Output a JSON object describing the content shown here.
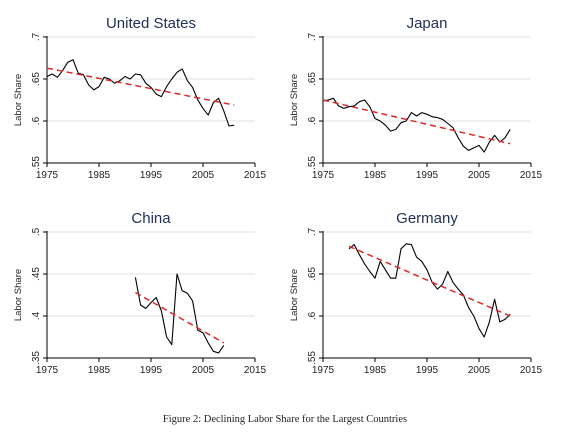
{
  "caption": "Figure 2: Declining Labor Share for the Largest Countries",
  "colors": {
    "series": "#000000",
    "trend": "#d92b2b",
    "grid": "#e2e2e2",
    "title": "#1f2f55"
  },
  "chart_data": [
    {
      "type": "line",
      "title": "United States",
      "ylabel": "Labor Share",
      "xlim": [
        1975,
        2015
      ],
      "ylim": [
        0.55,
        0.7
      ],
      "xticks": [
        "1975",
        "1985",
        "1995",
        "2005",
        "2015"
      ],
      "yticks": [
        ".55",
        ".6",
        ".65",
        ".7"
      ],
      "ytick_values": [
        0.55,
        0.6,
        0.65,
        0.7
      ],
      "grid": true,
      "series": [
        {
          "x": [
            1975,
            1976,
            1977,
            1978,
            1979,
            1980,
            1981,
            1982,
            1983,
            1984,
            1985,
            1986,
            1987,
            1988,
            1989,
            1990,
            1991,
            1992,
            1993,
            1994,
            1995,
            1996,
            1997,
            1998,
            1999,
            2000,
            2001,
            2002,
            2003,
            2004,
            2005,
            2006,
            2007,
            2008,
            2009,
            2010,
            2011
          ],
          "y": [
            0.653,
            0.656,
            0.652,
            0.66,
            0.67,
            0.673,
            0.657,
            0.655,
            0.643,
            0.637,
            0.641,
            0.652,
            0.65,
            0.645,
            0.648,
            0.653,
            0.65,
            0.656,
            0.655,
            0.645,
            0.64,
            0.632,
            0.629,
            0.641,
            0.65,
            0.658,
            0.662,
            0.648,
            0.64,
            0.625,
            0.615,
            0.607,
            0.622,
            0.627,
            0.612,
            0.594,
            0.595
          ]
        },
        {
          "x": [
            1975,
            2011
          ],
          "y": [
            0.663,
            0.619
          ]
        }
      ]
    },
    {
      "type": "line",
      "title": "Japan",
      "ylabel": "Labor Share",
      "xlim": [
        1975,
        2015
      ],
      "ylim": [
        0.55,
        0.7
      ],
      "xticks": [
        "1975",
        "1985",
        "1995",
        "2005",
        "2015"
      ],
      "yticks": [
        ".55",
        ".6",
        ".65",
        ".7"
      ],
      "ytick_values": [
        0.55,
        0.6,
        0.65,
        0.7
      ],
      "grid": true,
      "series": [
        {
          "x": [
            1975,
            1976,
            1977,
            1978,
            1979,
            1980,
            1981,
            1982,
            1983,
            1984,
            1985,
            1986,
            1987,
            1988,
            1989,
            1990,
            1991,
            1992,
            1993,
            1994,
            1995,
            1996,
            1997,
            1998,
            1999,
            2000,
            2001,
            2002,
            2003,
            2004,
            2005,
            2006,
            2007,
            2008,
            2009,
            2010,
            2011
          ],
          "y": [
            0.624,
            0.625,
            0.627,
            0.618,
            0.615,
            0.617,
            0.618,
            0.623,
            0.625,
            0.617,
            0.603,
            0.6,
            0.595,
            0.588,
            0.59,
            0.598,
            0.6,
            0.61,
            0.606,
            0.61,
            0.608,
            0.605,
            0.604,
            0.602,
            0.597,
            0.592,
            0.58,
            0.57,
            0.565,
            0.568,
            0.571,
            0.563,
            0.575,
            0.583,
            0.575,
            0.58,
            0.59
          ]
        },
        {
          "x": [
            1975,
            2011
          ],
          "y": [
            0.625,
            0.573
          ]
        }
      ]
    },
    {
      "type": "line",
      "title": "China",
      "ylabel": "Labor Share",
      "xlim": [
        1975,
        2015
      ],
      "ylim": [
        0.35,
        0.5
      ],
      "xticks": [
        "1975",
        "1985",
        "1995",
        "2005",
        "2015"
      ],
      "yticks": [
        ".35",
        ".4",
        ".45",
        ".5"
      ],
      "ytick_values": [
        0.35,
        0.4,
        0.45,
        0.5
      ],
      "grid": true,
      "series": [
        {
          "x": [
            1992,
            1993,
            1994,
            1995,
            1996,
            1997,
            1998,
            1999,
            2000,
            2001,
            2002,
            2003,
            2004,
            2005,
            2006,
            2007,
            2008,
            2009
          ],
          "y": [
            0.446,
            0.413,
            0.409,
            0.416,
            0.422,
            0.406,
            0.375,
            0.366,
            0.45,
            0.43,
            0.427,
            0.418,
            0.383,
            0.38,
            0.368,
            0.358,
            0.356,
            0.365
          ]
        },
        {
          "x": [
            1992,
            2009
          ],
          "y": [
            0.428,
            0.368
          ]
        }
      ]
    },
    {
      "type": "line",
      "title": "Germany",
      "ylabel": "Labor Share",
      "xlim": [
        1975,
        2015
      ],
      "ylim": [
        0.55,
        0.7
      ],
      "xticks": [
        "1975",
        "1985",
        "1995",
        "2005",
        "2015"
      ],
      "yticks": [
        ".55",
        ".6",
        ".65",
        ".7"
      ],
      "ytick_values": [
        0.55,
        0.6,
        0.65,
        0.7
      ],
      "grid": true,
      "series": [
        {
          "x": [
            1980,
            1981,
            1982,
            1983,
            1984,
            1985,
            1986,
            1987,
            1988,
            1989,
            1990,
            1991,
            1992,
            1993,
            1994,
            1995,
            1996,
            1997,
            1998,
            1999,
            2000,
            2001,
            2002,
            2003,
            2004,
            2005,
            2006,
            2007,
            2008,
            2009,
            2010,
            2011
          ],
          "y": [
            0.68,
            0.685,
            0.673,
            0.662,
            0.653,
            0.645,
            0.665,
            0.655,
            0.645,
            0.645,
            0.68,
            0.686,
            0.685,
            0.67,
            0.665,
            0.655,
            0.64,
            0.632,
            0.638,
            0.653,
            0.64,
            0.632,
            0.625,
            0.61,
            0.6,
            0.585,
            0.575,
            0.593,
            0.62,
            0.593,
            0.596,
            0.602
          ]
        },
        {
          "x": [
            1980,
            2011
          ],
          "y": [
            0.683,
            0.6
          ]
        }
      ]
    }
  ]
}
